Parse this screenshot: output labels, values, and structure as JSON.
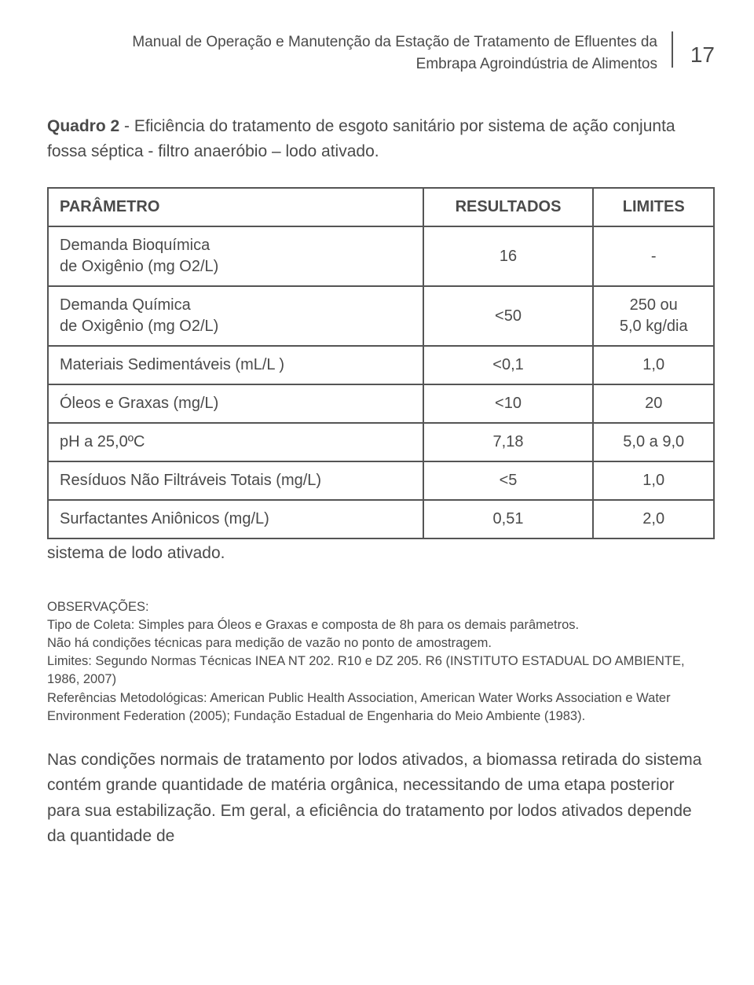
{
  "header": {
    "title_line1": "Manual de Operação e Manutenção da Estação de Tratamento de Efluentes da",
    "title_line2": "Embrapa Agroindústria de Alimentos",
    "page_number": "17"
  },
  "caption": {
    "lead": "Quadro 2",
    "rest": " - Eficiência do tratamento de esgoto sanitário por sistema de ação conjunta fossa séptica - filtro anaeróbio – lodo ativado."
  },
  "table": {
    "columns": [
      "PARÂMETRO",
      "RESULTADOS",
      "LIMITES"
    ],
    "col_align": [
      "left",
      "center",
      "center"
    ],
    "rows": [
      {
        "param": "Demanda Bioquímica\nde Oxigênio (mg O2/L)",
        "result": "16",
        "limit": "-"
      },
      {
        "param": "Demanda Química\nde Oxigênio (mg O2/L)",
        "result": "<50",
        "limit": "250 ou\n5,0 kg/dia"
      },
      {
        "param": "Materiais Sedimentáveis (mL/L )",
        "result": "<0,1",
        "limit": "1,0"
      },
      {
        "param": "Óleos e Graxas (mg/L)",
        "result": "<10",
        "limit": "20"
      },
      {
        "param": "pH a 25,0ºC",
        "result": "7,18",
        "limit": "5,0 a 9,0"
      },
      {
        "param": "Resíduos Não Filtráveis Totais (mg/L)",
        "result": "<5",
        "limit": "1,0"
      },
      {
        "param": "Surfactantes Aniônicos (mg/L)",
        "result": "0,51",
        "limit": "2,0"
      }
    ]
  },
  "after_table": "sistema de lodo ativado.",
  "observations": {
    "heading": "OBSERVAÇÕES:",
    "lines": [
      "Tipo de Coleta: Simples para Óleos e Graxas e composta de 8h para os demais parâmetros.",
      "Não há condições técnicas para medição de vazão no ponto de amostragem.",
      "Limites: Segundo Normas Técnicas INEA NT 202. R10 e DZ 205. R6 (INSTITUTO ESTADUAL DO AMBIENTE, 1986, 2007)",
      "Referências Metodológicas: American Public Health Association, American Water Works Association e Water Environment Federation (2005); Fundação Estadual de Engenharia do Meio Ambiente (1983)."
    ]
  },
  "body_paragraph": "Nas condições normais de tratamento por lodos ativados, a biomassa retirada do sistema contém grande quantidade de matéria orgânica, necessitando de uma etapa posterior para sua estabilização. Em geral, a eficiência do tratamento por lodos ativados depende da quantidade de",
  "colors": {
    "text": "#4a4a4a",
    "border": "#555555",
    "background": "#ffffff"
  }
}
